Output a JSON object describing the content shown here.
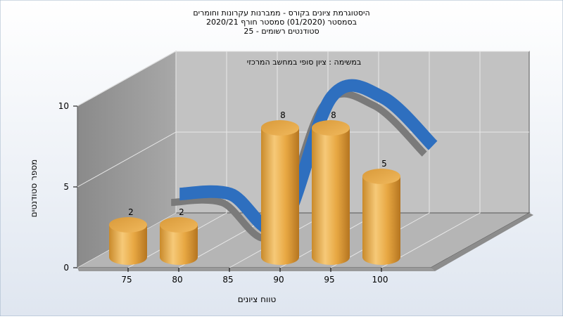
{
  "chart_data": {
    "type": "bar",
    "title_lines": [
      "היסטוגרמת ציונים בקורס - ממברנות עקרונות וחומרים",
      "בסמסטר  (01/2020)  סמסטר חורף  2020/21",
      "סטודנטים רשומים - 25"
    ],
    "subtitle": "במשימה : ציון סופי במחשב המרכזי",
    "categories": [
      "75",
      "80",
      "85",
      "90",
      "95",
      "100"
    ],
    "series": [
      {
        "values": [
          2,
          2,
          0,
          8,
          8,
          5
        ]
      }
    ],
    "curve_color": "#2e6fbf",
    "bar_color": "#e8a843",
    "y_ticks": [
      "0",
      "5",
      "10"
    ],
    "ylim": [
      0,
      10
    ],
    "xlabel": "טווח ציונים",
    "ylabel": "מספר סטודנטים",
    "grid": true,
    "legend": "none"
  }
}
